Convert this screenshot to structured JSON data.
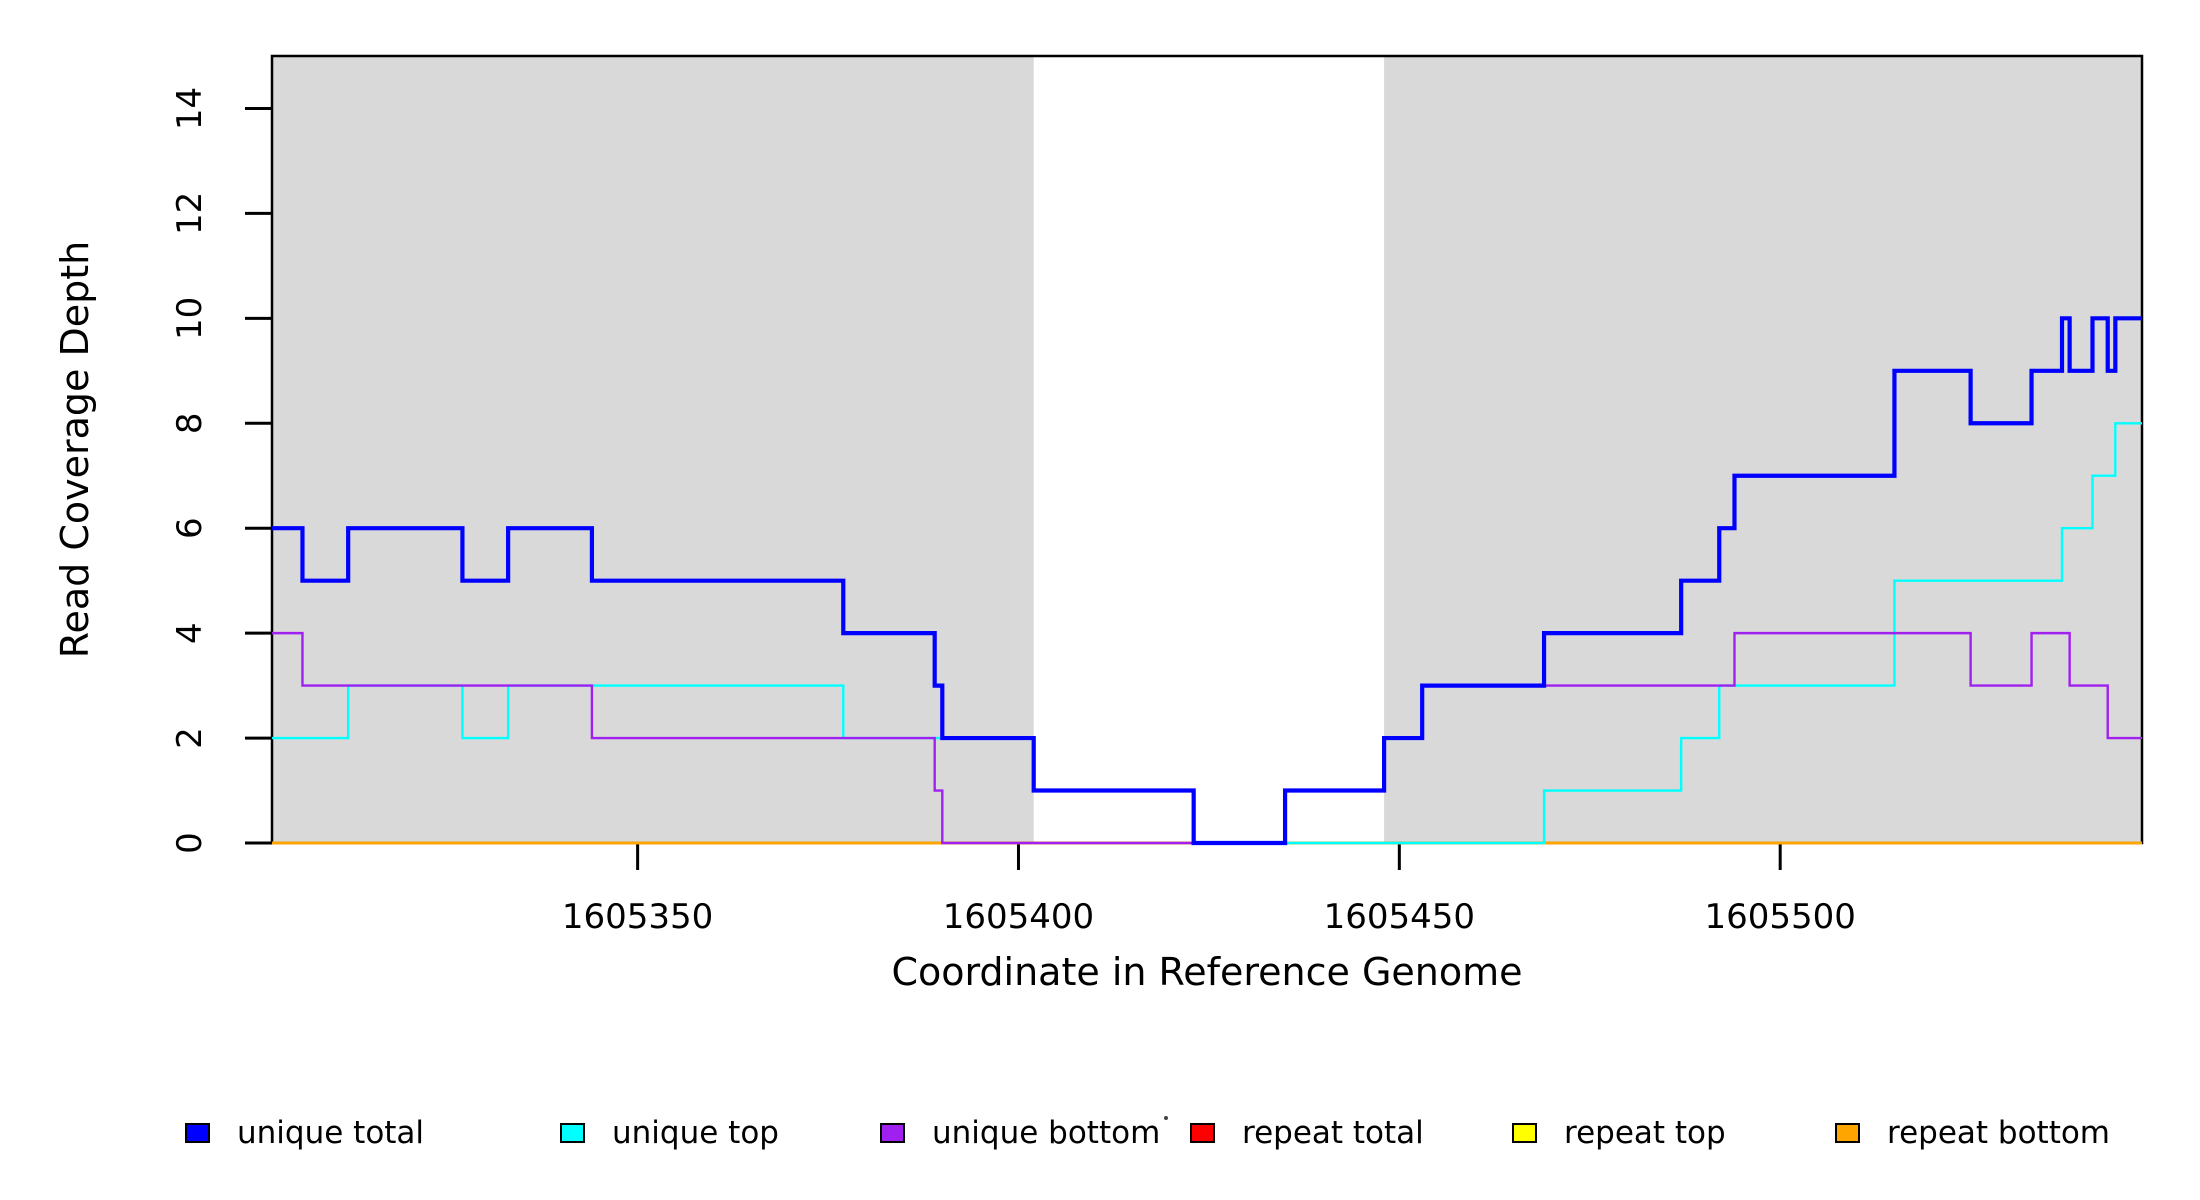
{
  "chart_data": {
    "type": "line",
    "step": true,
    "title": "",
    "xlabel": "Coordinate in Reference Genome",
    "ylabel": "Read Coverage Depth",
    "xlim": [
      1605302,
      1605547.5
    ],
    "ylim": [
      0,
      15
    ],
    "x_ticks": [
      1605350,
      1605400,
      1605450,
      1605500
    ],
    "y_ticks": [
      0,
      2,
      4,
      6,
      8,
      10,
      12,
      14
    ],
    "grid": false,
    "background_color": "#ffffff",
    "shade_color": "#d9d9d9",
    "frame_color": "#000000",
    "shaded_regions": [
      [
        1605302,
        1605402
      ],
      [
        1605448,
        1605547.5
      ]
    ],
    "series": [
      {
        "name": "repeat total",
        "color": "#ff0000",
        "width": 2.4,
        "steps": [
          [
            1605302,
            0
          ]
        ]
      },
      {
        "name": "repeat top",
        "color": "#ffff00",
        "width": 2.4,
        "steps": [
          [
            1605302,
            0
          ]
        ]
      },
      {
        "name": "repeat bottom",
        "color": "#ffa500",
        "width": 2.4,
        "steps": [
          [
            1605302,
            0
          ]
        ]
      },
      {
        "name": "unique top",
        "color": "#00ffff",
        "width": 2.4,
        "steps": [
          [
            1605302,
            2
          ],
          [
            1605312,
            3
          ],
          [
            1605327,
            2
          ],
          [
            1605333,
            3
          ],
          [
            1605377,
            2
          ],
          [
            1605402,
            1
          ],
          [
            1605423,
            0
          ],
          [
            1605469,
            1
          ],
          [
            1605487,
            2
          ],
          [
            1605492,
            3
          ],
          [
            1605515,
            5
          ],
          [
            1605537,
            6
          ],
          [
            1605541,
            7
          ],
          [
            1605544,
            8
          ]
        ]
      },
      {
        "name": "unique bottom",
        "color": "#a020f0",
        "width": 2.4,
        "steps": [
          [
            1605302,
            4
          ],
          [
            1605306,
            3
          ],
          [
            1605344,
            2
          ],
          [
            1605389,
            1
          ],
          [
            1605390,
            0
          ],
          [
            1605435,
            1
          ],
          [
            1605448,
            2
          ],
          [
            1605453,
            3
          ],
          [
            1605494,
            4
          ],
          [
            1605525,
            3
          ],
          [
            1605533,
            4
          ],
          [
            1605538,
            3
          ],
          [
            1605543,
            2
          ]
        ]
      },
      {
        "name": "unique total",
        "color": "#0000ff",
        "width": 4.2,
        "steps": [
          [
            1605302,
            6
          ],
          [
            1605306,
            5
          ],
          [
            1605312,
            6
          ],
          [
            1605327,
            5
          ],
          [
            1605333,
            6
          ],
          [
            1605344,
            5
          ],
          [
            1605377,
            4
          ],
          [
            1605389,
            3
          ],
          [
            1605390,
            2
          ],
          [
            1605402,
            1
          ],
          [
            1605423,
            0
          ],
          [
            1605435,
            1
          ],
          [
            1605448,
            2
          ],
          [
            1605453,
            3
          ],
          [
            1605469,
            4
          ],
          [
            1605487,
            5
          ],
          [
            1605492,
            6
          ],
          [
            1605494,
            7
          ],
          [
            1605515,
            9
          ],
          [
            1605525,
            8
          ],
          [
            1605533,
            9
          ],
          [
            1605537,
            10
          ],
          [
            1605538,
            9
          ],
          [
            1605541,
            10
          ],
          [
            1605543,
            9
          ],
          [
            1605544,
            10
          ]
        ]
      }
    ],
    "legend_position": "bottom"
  },
  "legend": {
    "entries": [
      {
        "label": "unique total",
        "color": "#0000ff"
      },
      {
        "label": "unique top",
        "color": "#00ffff"
      },
      {
        "label": "unique bottom",
        "color": "#a020f0"
      },
      {
        "label": "repeat total",
        "color": "#ff0000"
      },
      {
        "label": "repeat top",
        "color": "#ffff00"
      },
      {
        "label": "repeat bottom",
        "color": "#ffa500"
      }
    ]
  }
}
